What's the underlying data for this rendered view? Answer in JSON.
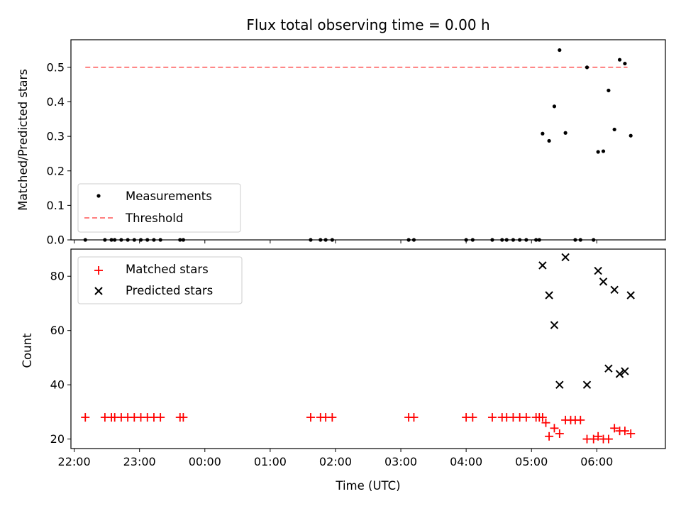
{
  "chart_data": [
    {
      "type": "scatter",
      "title": "Flux total observing time = 0.00 h",
      "ylabel": "Matched/Predicted stars",
      "xlabel": "",
      "ylim": [
        0,
        0.58
      ],
      "yticks": [
        "0.0",
        "0.1",
        "0.2",
        "0.3",
        "0.4",
        "0.5"
      ],
      "legend_position": "lower-left",
      "threshold": {
        "name": "Threshold",
        "value": 0.5,
        "x_range": [
          22.17,
          30.47
        ],
        "color": "#ff7f7f"
      },
      "series": [
        {
          "name": "Measurements",
          "color": "#000000",
          "x": [
            22.17,
            22.47,
            22.57,
            22.62,
            22.72,
            22.82,
            22.92,
            23.02,
            23.12,
            23.22,
            23.32,
            23.62,
            23.67,
            25.62,
            25.77,
            25.85,
            25.95,
            27.12,
            27.2,
            28.0,
            28.1,
            28.4,
            28.55,
            28.62,
            28.72,
            28.82,
            28.92,
            29.07,
            29.12,
            29.17,
            29.27,
            29.35,
            29.43,
            29.52,
            29.67,
            29.75,
            29.85,
            29.95,
            30.02,
            30.1,
            30.18,
            30.27,
            30.35,
            30.43,
            30.52
          ],
          "y": [
            0,
            0,
            0,
            0,
            0,
            0,
            0,
            0,
            0,
            0,
            0,
            0,
            0,
            0,
            0,
            0,
            0,
            0,
            0,
            0,
            0,
            0,
            0,
            0,
            0,
            0,
            0,
            0,
            0,
            0.308,
            0.287,
            0.387,
            0.55,
            0.31,
            0,
            0,
            0.5,
            0,
            0.255,
            0.257,
            0.433,
            0.32,
            0.522,
            0.511,
            0.302
          ]
        }
      ]
    },
    {
      "type": "scatter",
      "title": "",
      "ylabel": "Count",
      "xlabel": "Time (UTC)",
      "ylim": [
        16.5,
        90
      ],
      "yticks": [
        "20",
        "40",
        "60",
        "80"
      ],
      "xlim": [
        21.95,
        31.05
      ],
      "xticks": [
        "22:00",
        "23:00",
        "00:00",
        "01:00",
        "02:00",
        "03:00",
        "04:00",
        "05:00",
        "06:00"
      ],
      "legend_position": "upper-left",
      "series": [
        {
          "name": "Matched stars",
          "color": "#ff0000",
          "marker": "+",
          "x": [
            22.17,
            22.47,
            22.57,
            22.62,
            22.72,
            22.82,
            22.92,
            23.02,
            23.12,
            23.22,
            23.32,
            23.62,
            23.67,
            25.62,
            25.77,
            25.85,
            25.95,
            27.12,
            27.2,
            28.0,
            28.1,
            28.4,
            28.55,
            28.62,
            28.72,
            28.82,
            28.92,
            29.07,
            29.12,
            29.17,
            29.22,
            29.27,
            29.35,
            29.43,
            29.52,
            29.6,
            29.67,
            29.75,
            29.85,
            29.95,
            30.02,
            30.1,
            30.18,
            30.27,
            30.35,
            30.43,
            30.52
          ],
          "y": [
            28,
            28,
            28,
            28,
            28,
            28,
            28,
            28,
            28,
            28,
            28,
            28,
            28,
            28,
            28,
            28,
            28,
            28,
            28,
            28,
            28,
            28,
            28,
            28,
            28,
            28,
            28,
            28,
            28,
            28,
            26,
            21,
            24,
            22,
            27,
            27,
            27,
            27,
            20,
            20,
            21,
            20,
            20,
            24,
            23,
            23,
            22
          ]
        },
        {
          "name": "Predicted stars",
          "color": "#000000",
          "marker": "x",
          "x": [
            29.17,
            29.27,
            29.35,
            29.43,
            29.52,
            29.85,
            30.02,
            30.1,
            30.18,
            30.27,
            30.35,
            30.43,
            30.52
          ],
          "y": [
            84,
            73,
            62,
            40,
            87,
            40,
            82,
            78,
            46,
            75,
            44,
            45,
            73
          ]
        }
      ]
    }
  ]
}
